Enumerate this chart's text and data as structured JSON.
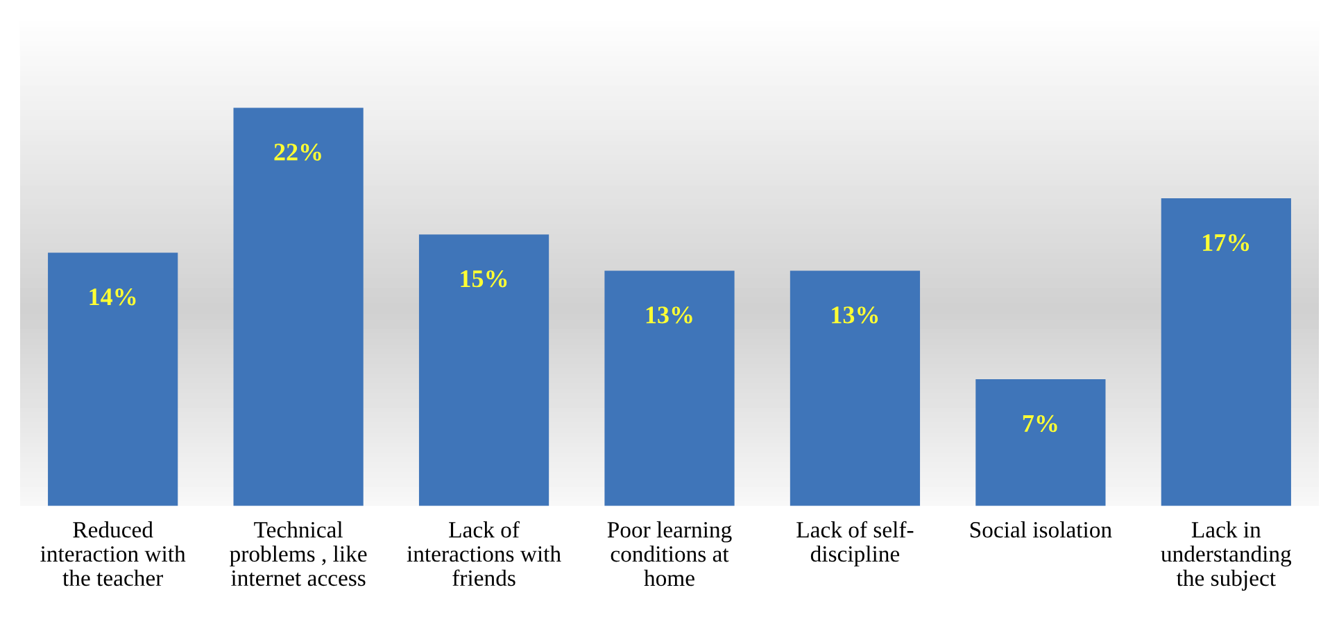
{
  "chart_data": {
    "type": "bar",
    "categories": [
      "Reduced\ninteraction with\nthe teacher",
      "Technical\nproblems , like\ninternet access",
      "Lack of\ninteractions with\nfriends",
      "Poor learning\nconditions at\nhome",
      "Lack of self-\ndiscipline",
      "Social isolation",
      "Lack in\nunderstanding\nthe subject"
    ],
    "values": [
      14,
      22,
      15,
      13,
      13,
      7,
      17
    ],
    "value_labels": [
      "14%",
      "22%",
      "15%",
      "13%",
      "13%",
      "7%",
      "17%"
    ],
    "color": "#3f75b9",
    "grid": false,
    "legend": false
  }
}
